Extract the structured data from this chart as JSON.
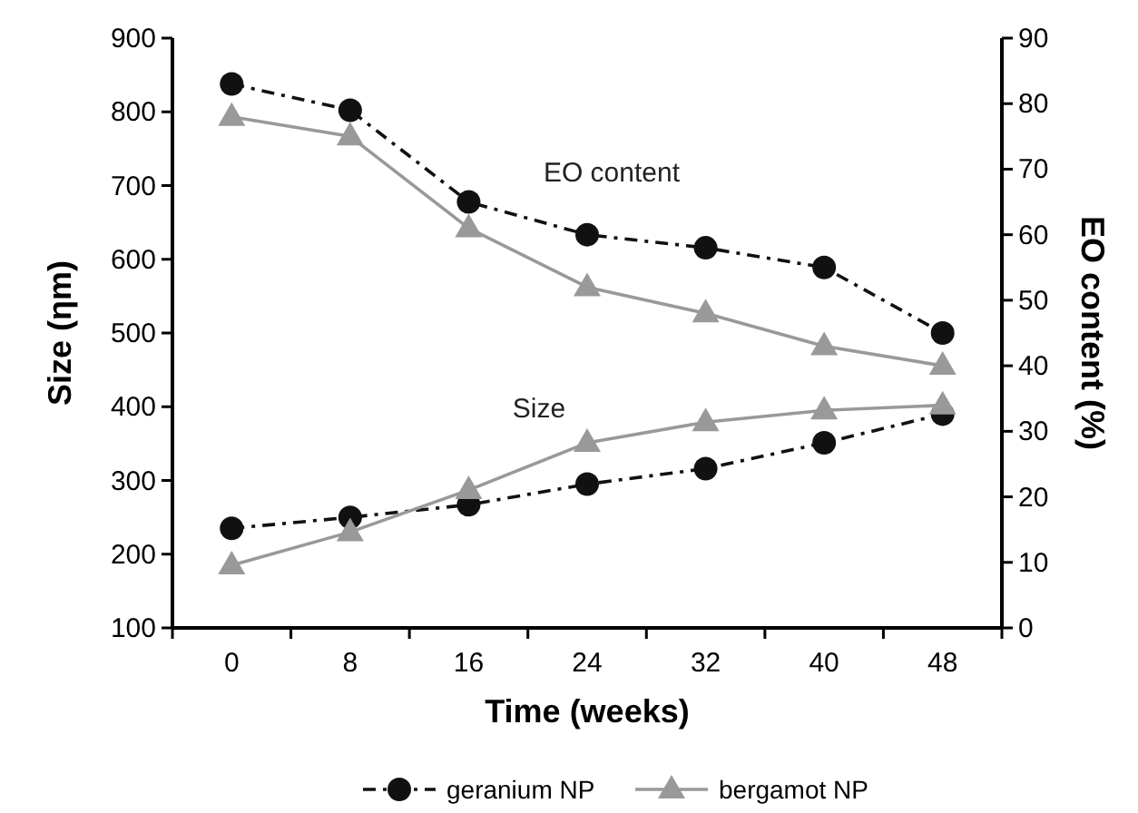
{
  "chart_data": {
    "type": "line",
    "xlabel": "Time (weeks)",
    "ylabel": "Size (ηm)",
    "y2label": "EO content (%)",
    "categories": [
      "0",
      "8",
      "16",
      "24",
      "32",
      "40",
      "48"
    ],
    "ylim": [
      100,
      900
    ],
    "yticks": [
      100,
      200,
      300,
      400,
      500,
      600,
      700,
      800,
      900
    ],
    "y2lim": [
      0,
      90
    ],
    "y2ticks": [
      0,
      10,
      20,
      30,
      40,
      50,
      60,
      70,
      80,
      90
    ],
    "series": [
      {
        "name": "geranium NP",
        "color": "#111111",
        "marker": "circle",
        "line_style": "dashed",
        "values": [
          235,
          250,
          267,
          295,
          316,
          351,
          390
        ]
      },
      {
        "name": "bergamot NP",
        "color": "#999999",
        "marker": "triangle",
        "line_style": "solid",
        "values": [
          185,
          230,
          287,
          351,
          379,
          395,
          402
        ]
      },
      {
        "color": "#111111",
        "marker": "circle",
        "line_style": "dashed",
        "axis": "y2",
        "values": [
          83,
          79,
          65,
          60,
          58,
          55,
          45
        ]
      },
      {
        "color": "#999999",
        "marker": "triangle",
        "line_style": "solid",
        "axis": "y2",
        "values": [
          78,
          75,
          61,
          52,
          48,
          43,
          40
        ]
      }
    ],
    "annotations": [
      "EO content",
      "Size"
    ],
    "legend": "bottom",
    "grid": false
  }
}
